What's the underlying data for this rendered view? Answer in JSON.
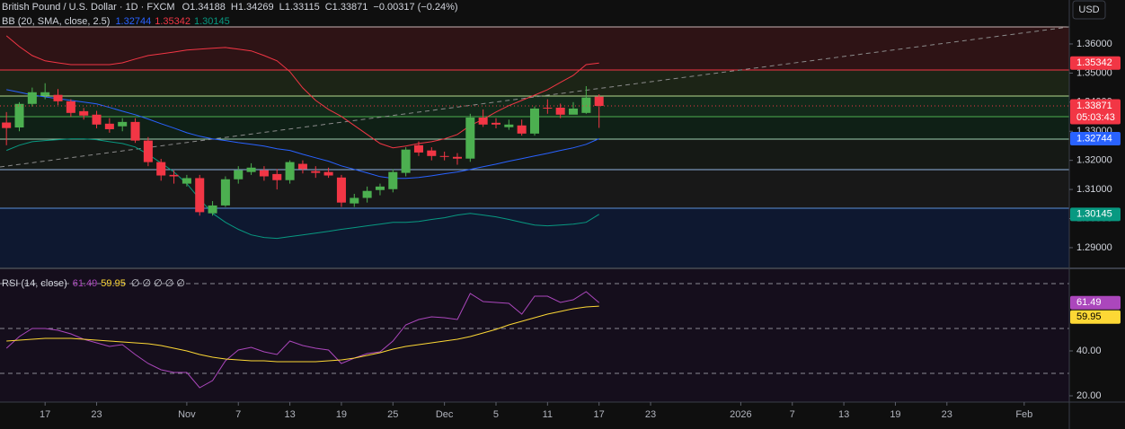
{
  "chart_data": [
    {
      "type": "candlestick",
      "title": "British Pound / U.S. Dollar · 1D · FXCM",
      "ohlc_labels": [
        "O",
        "H",
        "L",
        "C"
      ],
      "change": "−0.00317 (−0.24%)",
      "currency": "USD",
      "countdown": "05:03:43",
      "indicator": "BB (20, SMA, close, 2.5)",
      "up_color": "#4caf50",
      "down_color": "#f23645",
      "open": [
        1.333,
        1.3313,
        1.3394,
        1.3422,
        1.3425,
        1.3403,
        1.3369,
        1.3357,
        1.3326,
        1.3317,
        1.3332,
        1.3268,
        1.3194,
        1.315,
        1.312,
        1.3139,
        1.3018,
        1.3045,
        1.3135,
        1.316,
        1.3166,
        1.3153,
        1.3132,
        1.3188,
        1.3163,
        1.316,
        1.3141,
        1.3052,
        1.3071,
        1.3098,
        1.3101,
        1.3157,
        1.3252,
        1.3234,
        1.3215,
        1.3212,
        1.3206,
        1.3347,
        1.3329,
        1.3314,
        1.332,
        1.3292,
        1.3381,
        1.3381,
        1.3357,
        1.3363,
        1.34188
      ],
      "high": [
        1.3366,
        1.34,
        1.345,
        1.3465,
        1.3445,
        1.341,
        1.338,
        1.337,
        1.3345,
        1.3345,
        1.3345,
        1.328,
        1.3205,
        1.3165,
        1.315,
        1.315,
        1.306,
        1.3145,
        1.318,
        1.319,
        1.318,
        1.317,
        1.32,
        1.32,
        1.318,
        1.3175,
        1.315,
        1.3085,
        1.311,
        1.312,
        1.317,
        1.3245,
        1.3265,
        1.3245,
        1.323,
        1.3225,
        1.336,
        1.3375,
        1.3345,
        1.334,
        1.334,
        1.3385,
        1.341,
        1.3395,
        1.34,
        1.3455,
        1.34269
      ],
      "low": [
        1.3252,
        1.33,
        1.3385,
        1.341,
        1.339,
        1.335,
        1.334,
        1.331,
        1.3295,
        1.33,
        1.326,
        1.318,
        1.313,
        1.312,
        1.311,
        1.301,
        1.301,
        1.304,
        1.312,
        1.315,
        1.313,
        1.31,
        1.312,
        1.3155,
        1.314,
        1.314,
        1.304,
        1.304,
        1.3055,
        1.308,
        1.309,
        1.3145,
        1.3215,
        1.32,
        1.32,
        1.3185,
        1.3195,
        1.3315,
        1.331,
        1.3305,
        1.3285,
        1.3285,
        1.336,
        1.3345,
        1.336,
        1.336,
        1.33115
      ],
      "close": [
        1.3311,
        1.3394,
        1.3434,
        1.3434,
        1.3403,
        1.3363,
        1.3354,
        1.3323,
        1.3307,
        1.3332,
        1.3268,
        1.3194,
        1.3148,
        1.3145,
        1.3139,
        1.3022,
        1.3045,
        1.3135,
        1.3166,
        1.3175,
        1.3145,
        1.3132,
        1.3194,
        1.317,
        1.3157,
        1.3148,
        1.3055,
        1.3071,
        1.3095,
        1.311,
        1.316,
        1.3237,
        1.3227,
        1.3215,
        1.3212,
        1.3206,
        1.3347,
        1.3323,
        1.3323,
        1.3323,
        1.3292,
        1.3378,
        1.3378,
        1.3357,
        1.3378,
        1.3416,
        1.33871
      ],
      "series": [
        {
          "color": "#2962ff",
          "values": [
            1.3443,
            1.3434,
            1.3425,
            1.3418,
            1.3412,
            1.3406,
            1.34,
            1.3394,
            1.3382,
            1.3369,
            1.3357,
            1.3342,
            1.3326,
            1.3311,
            1.3295,
            1.3283,
            1.3274,
            1.3268,
            1.3261,
            1.3255,
            1.3249,
            1.324,
            1.3234,
            1.3221,
            1.3209,
            1.3197,
            1.3181,
            1.3169,
            1.3157,
            1.3144,
            1.3138,
            1.3138,
            1.3141,
            1.3147,
            1.3154,
            1.316,
            1.3169,
            1.3178,
            1.3187,
            1.3197,
            1.3206,
            1.3215,
            1.3224,
            1.3234,
            1.3243,
            1.3255,
            1.32744
          ]
        },
        {
          "color": "#f23645",
          "values": [
            1.3628,
            1.3591,
            1.356,
            1.3542,
            1.3535,
            1.3529,
            1.3529,
            1.3529,
            1.3529,
            1.3535,
            1.3548,
            1.356,
            1.3566,
            1.3572,
            1.3579,
            1.3582,
            1.3585,
            1.3588,
            1.3582,
            1.3576,
            1.356,
            1.3542,
            1.3505,
            1.3449,
            1.3406,
            1.3375,
            1.3351,
            1.332,
            1.3289,
            1.3258,
            1.3243,
            1.3249,
            1.3258,
            1.3264,
            1.3274,
            1.3289,
            1.332,
            1.3341,
            1.3366,
            1.3388,
            1.3406,
            1.3424,
            1.3443,
            1.3468,
            1.3492,
            1.3529,
            1.35342
          ]
        },
        {
          "color": "#089981",
          "values": [
            1.3234,
            1.3252,
            1.3264,
            1.3268,
            1.3271,
            1.3274,
            1.3274,
            1.3271,
            1.3264,
            1.3258,
            1.3246,
            1.3221,
            1.3191,
            1.316,
            1.312,
            1.3067,
            1.3018,
            1.2987,
            1.2963,
            1.2944,
            1.2935,
            1.2932,
            1.2938,
            1.2944,
            1.295,
            1.2956,
            1.2963,
            1.2969,
            1.2975,
            1.2981,
            1.2987,
            1.2987,
            1.299,
            1.2997,
            1.3003,
            1.3012,
            1.3018,
            1.3012,
            1.3006,
            1.2997,
            1.2987,
            1.2978,
            1.2975,
            1.2978,
            1.2981,
            1.2987,
            1.30145
          ]
        }
      ],
      "xlim": [
        -0.5,
        82.5
      ],
      "xticks": [
        {
          "value": 3,
          "label": "17"
        },
        {
          "value": 7,
          "label": "23"
        },
        {
          "value": 14,
          "label": "Nov"
        },
        {
          "value": 18,
          "label": "7"
        },
        {
          "value": 22,
          "label": "13"
        },
        {
          "value": 26,
          "label": "19"
        },
        {
          "value": 30,
          "label": "25"
        },
        {
          "value": 34,
          "label": "Dec"
        },
        {
          "value": 38,
          "label": "5"
        },
        {
          "value": 42,
          "label": "11"
        },
        {
          "value": 46,
          "label": "17"
        },
        {
          "value": 50,
          "label": "23"
        },
        {
          "value": 57,
          "label": "2026"
        },
        {
          "value": 61,
          "label": "7"
        },
        {
          "value": 65,
          "label": "13"
        },
        {
          "value": 69,
          "label": "19"
        },
        {
          "value": 73,
          "label": "23"
        },
        {
          "value": 79,
          "label": "Feb"
        }
      ],
      "ylim": [
        1.2832,
        1.3751
      ],
      "yticks": [
        {
          "value": 1.29,
          "label": "1.29000"
        },
        {
          "value": 1.3,
          "label": "1.30000"
        },
        {
          "value": 1.31,
          "label": "1.31000"
        },
        {
          "value": 1.32,
          "label": "1.32000"
        },
        {
          "value": 1.33,
          "label": "1.33000"
        },
        {
          "value": 1.34,
          "label": "1.34000"
        },
        {
          "value": 1.35,
          "label": "1.35000"
        },
        {
          "value": 1.36,
          "label": "1.36000"
        }
      ]
    },
    {
      "type": "line",
      "indicator": "RSI (14, close)",
      "placeholders": "∅ ∅ ∅ ∅ ∅",
      "series": [
        {
          "color": "#ab47bc",
          "values": [
            41.2,
            46.4,
            50.0,
            50.0,
            49.2,
            47.6,
            45.2,
            43.6,
            42.0,
            42.8,
            38.4,
            34.4,
            31.6,
            30.4,
            30.4,
            23.6,
            26.8,
            35.6,
            40.4,
            41.6,
            39.6,
            38.4,
            44.4,
            42.4,
            41.2,
            40.4,
            34.4,
            36.8,
            38.8,
            39.6,
            44.4,
            51.6,
            54.0,
            55.2,
            54.8,
            54.0,
            65.6,
            62.0,
            61.6,
            61.2,
            56.4,
            64.4,
            64.4,
            61.6,
            62.8,
            66.4,
            61.49
          ]
        },
        {
          "color": "#fdd835",
          "values": [
            44.4,
            44.8,
            45.2,
            45.6,
            45.6,
            45.6,
            45.2,
            44.8,
            44.4,
            44.0,
            43.6,
            43.2,
            42.4,
            41.2,
            40.0,
            38.4,
            37.2,
            36.4,
            36.0,
            35.6,
            35.6,
            35.2,
            35.2,
            35.2,
            35.2,
            35.6,
            36.0,
            36.8,
            38.0,
            39.2,
            40.8,
            42.0,
            42.8,
            43.6,
            44.4,
            45.2,
            46.4,
            48.0,
            49.6,
            51.6,
            53.2,
            54.8,
            56.4,
            57.6,
            58.8,
            59.6,
            59.95
          ]
        }
      ],
      "levels": [
        70,
        50,
        30
      ],
      "ylim": [
        17.2,
        76.4
      ],
      "yticks": [
        {
          "value": 40,
          "label": "40.00"
        },
        {
          "value": 20,
          "label": "20.00"
        }
      ]
    }
  ]
}
